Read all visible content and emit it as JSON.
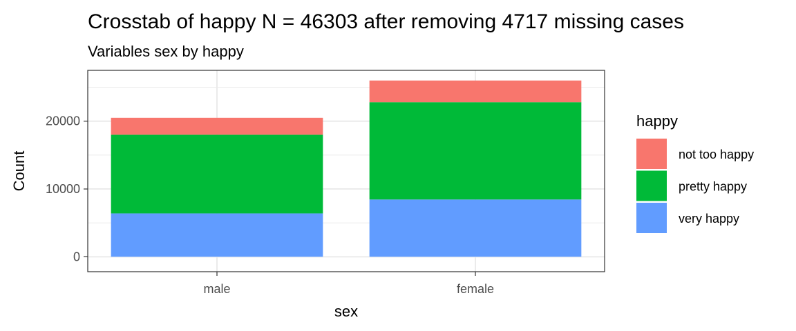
{
  "chart_data": {
    "type": "bar",
    "stacked": true,
    "title": "Crosstab of happy N = 46303 after removing 4717 missing cases",
    "subtitle": "Variables sex by happy",
    "xlabel": "sex",
    "ylabel": "Count",
    "categories": [
      "male",
      "female"
    ],
    "ylim": [
      -2200,
      27500
    ],
    "yticks": [
      0,
      10000,
      20000
    ],
    "ytick_labels": [
      "0",
      "10000",
      "20000"
    ],
    "grid": true,
    "legend": {
      "title": "happy",
      "position": "right"
    },
    "series": [
      {
        "name": "very happy",
        "color": "#619CFF",
        "values": [
          6400,
          8450
        ]
      },
      {
        "name": "pretty happy",
        "color": "#00BA38",
        "values": [
          11600,
          14350
        ]
      },
      {
        "name": "not too happy",
        "color": "#F8766D",
        "values": [
          2500,
          3200
        ]
      }
    ],
    "legend_order": [
      "not too happy",
      "pretty happy",
      "very happy"
    ]
  }
}
